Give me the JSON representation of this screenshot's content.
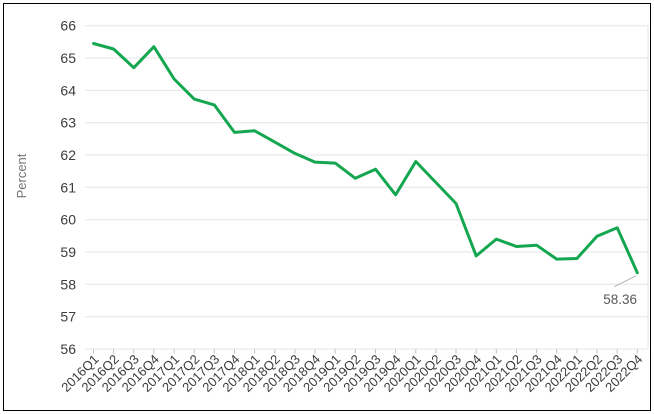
{
  "chart_data": {
    "type": "line",
    "title": "",
    "ylabel": "Percent",
    "xlabel": "",
    "categories": [
      "2016Q1",
      "2016Q2",
      "2016Q3",
      "2016Q4",
      "2017Q1",
      "2017Q2",
      "2017Q3",
      "2017Q4",
      "2018Q1",
      "2018Q2",
      "2018Q3",
      "2018Q4",
      "2019Q1",
      "2019Q2",
      "2019Q3",
      "2019Q4",
      "2020Q1",
      "2020Q2",
      "2020Q3",
      "2020Q4",
      "2021Q1",
      "2021Q2",
      "2021Q3",
      "2021Q4",
      "2022Q1",
      "2022Q2",
      "2022Q3",
      "2022Q4"
    ],
    "series": [
      {
        "name": "Percent",
        "values": [
          65.45,
          65.28,
          64.7,
          65.35,
          64.35,
          63.73,
          63.55,
          62.7,
          62.75,
          62.4,
          62.05,
          61.78,
          61.75,
          61.28,
          61.56,
          60.77,
          61.8,
          61.15,
          60.5,
          58.88,
          59.4,
          59.17,
          59.21,
          58.78,
          58.8,
          59.49,
          59.75,
          58.36
        ]
      }
    ],
    "ylim": [
      56,
      66
    ],
    "yticks": [
      56,
      57,
      58,
      59,
      60,
      61,
      62,
      63,
      64,
      65,
      66
    ],
    "grid": true,
    "legend_position": "none",
    "annotation": {
      "text": "58.36",
      "target_category": "2022Q4"
    }
  },
  "style": {
    "line_color": "#14a750",
    "grid_color": "#e5e5e5",
    "tick_color": "#c2c2c2",
    "axis_text_color": "#3c3c3c",
    "ylabel_color": "#737373",
    "annotation_color": "#595959",
    "leader_color": "#b3b3b3",
    "frame_border_color": "#000000",
    "background": "#ffffff"
  }
}
